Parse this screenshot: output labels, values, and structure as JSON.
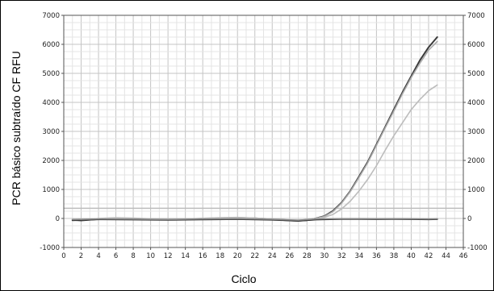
{
  "chart_data": {
    "type": "line",
    "title": "",
    "xlabel": "Ciclo",
    "ylabel": "PCR básico subtraído CF RFU",
    "xlim": [
      0,
      46
    ],
    "ylim": [
      -1000,
      7000
    ],
    "x_ticks": [
      "0",
      "2",
      "4",
      "6",
      "8",
      "10",
      "12",
      "14",
      "16",
      "18",
      "20",
      "22",
      "24",
      "26",
      "28",
      "30",
      "32",
      "34",
      "36",
      "38",
      "40",
      "42",
      "44",
      "46"
    ],
    "y_ticks": [
      "-1000",
      "0",
      "1000",
      "2000",
      "3000",
      "4000",
      "5000",
      "6000",
      "7000"
    ],
    "y_ticks_right": [
      "-1000",
      "0",
      "1000",
      "2000",
      "3000",
      "4000",
      "5000",
      "6000",
      "7000"
    ],
    "grid": true,
    "threshold": {
      "value": 350,
      "color": "#bdbdbd"
    },
    "series": [
      {
        "color": "#3a3a3a",
        "x": [
          1,
          2,
          4,
          6,
          8,
          10,
          12,
          14,
          16,
          18,
          20,
          22,
          24,
          26,
          27,
          28,
          29,
          30,
          31,
          32,
          33,
          34,
          35,
          36,
          37,
          38,
          39,
          40,
          41,
          42,
          43
        ],
        "y": [
          -50,
          -70,
          -20,
          10,
          -10,
          -30,
          -40,
          -30,
          -10,
          10,
          20,
          5,
          -30,
          -70,
          -80,
          -60,
          0,
          80,
          260,
          550,
          950,
          1450,
          1950,
          2550,
          3150,
          3750,
          4350,
          4900,
          5450,
          5900,
          6250
        ]
      },
      {
        "color": "#a9a9a9",
        "x": [
          1,
          2,
          4,
          6,
          8,
          10,
          12,
          14,
          16,
          18,
          20,
          22,
          24,
          26,
          27,
          28,
          29,
          30,
          31,
          32,
          33,
          34,
          35,
          36,
          37,
          38,
          39,
          40,
          41,
          42,
          43
        ],
        "y": [
          -40,
          -60,
          -10,
          20,
          0,
          -20,
          -30,
          -20,
          0,
          20,
          30,
          10,
          -20,
          -60,
          -70,
          -50,
          0,
          70,
          240,
          530,
          930,
          1420,
          1920,
          2520,
          3120,
          3700,
          4300,
          4850,
          5350,
          5800,
          6100
        ]
      },
      {
        "color": "#bcbcbc",
        "x": [
          1,
          2,
          4,
          6,
          8,
          10,
          12,
          14,
          16,
          18,
          20,
          22,
          24,
          26,
          27,
          28,
          29,
          30,
          31,
          32,
          33,
          34,
          35,
          36,
          37,
          38,
          39,
          40,
          41,
          42,
          43
        ],
        "y": [
          -30,
          -50,
          0,
          25,
          10,
          -10,
          -20,
          -15,
          5,
          25,
          35,
          15,
          -15,
          -55,
          -60,
          -40,
          0,
          40,
          140,
          330,
          600,
          950,
          1350,
          1820,
          2350,
          2850,
          3300,
          3750,
          4100,
          4400,
          4600
        ]
      },
      {
        "color": "#2b2b2b",
        "x": [
          1,
          4,
          8,
          12,
          16,
          20,
          24,
          27,
          29,
          30,
          32,
          34,
          36,
          38,
          40,
          42,
          43
        ],
        "y": [
          -60,
          -30,
          -40,
          -50,
          -35,
          -25,
          -45,
          -80,
          -40,
          -30,
          -20,
          -20,
          -25,
          -20,
          -25,
          -30,
          -25
        ]
      },
      {
        "color": "#888888",
        "x": [
          1,
          4,
          8,
          12,
          16,
          20,
          24,
          27,
          29,
          30,
          32,
          34,
          36,
          38,
          40,
          42,
          43
        ],
        "y": [
          -40,
          -20,
          -25,
          -35,
          -20,
          -10,
          -30,
          -60,
          -20,
          -15,
          -10,
          -10,
          -15,
          -10,
          -15,
          -20,
          -15
        ]
      }
    ]
  }
}
